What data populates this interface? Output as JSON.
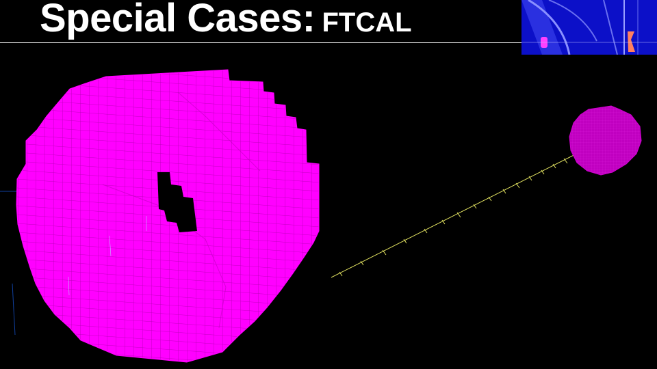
{
  "slide": {
    "title_main": "Special Cases:",
    "title_sub": "FTCAL"
  },
  "colors": {
    "background": "#000000",
    "calorimeter": "#ff00ff",
    "calorimeter_grid": "#a000a0",
    "small_disk": "#c000c0",
    "beam_axis": "#e0e060",
    "inset_blue": "#1010d0",
    "title_text": "#ffffff"
  }
}
